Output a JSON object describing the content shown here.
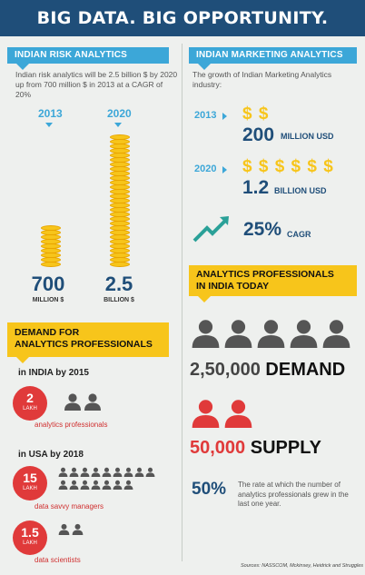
{
  "title": "BIG DATA. BIG OPPORTUNITY.",
  "risk": {
    "heading": "INDIAN RISK ANALYTICS",
    "desc": "Indian risk analytics will be 2.5 billion $ by 2020 up from 700 million $ in 2013 at a CAGR of 20%",
    "year_a": "2013",
    "year_b": "2020",
    "val_a": "700",
    "unit_a": "MILLION $",
    "val_b": "2.5",
    "unit_b": "BILLION $"
  },
  "marketing": {
    "heading": "INDIAN MARKETING ANALYTICS",
    "desc": "The growth of Indian Marketing Analytics industry:",
    "y1": "2013",
    "y1_dollars": "$ $",
    "y1_value": "200",
    "y1_unit": "MILLION USD",
    "y2": "2020",
    "y2_dollars": "$ $ $ $ $ $",
    "y2_value": "1.2",
    "y2_unit": "BILLION USD",
    "cagr_value": "25%",
    "cagr_label": "CAGR"
  },
  "demand": {
    "heading_l1": "DEMAND FOR",
    "heading_l2": "ANALYTICS PROFESSIONALS",
    "india_label": "in INDIA by 2015",
    "india_num": "2",
    "india_unit": "LAKH",
    "india_desc": "analytics professionals",
    "usa_label": "in USA by 2018",
    "usa1_num": "15",
    "usa1_unit": "LAKH",
    "usa1_desc": "data savvy managers",
    "usa2_num": "1.5",
    "usa2_unit": "LAKH",
    "usa2_desc": "data scientists"
  },
  "professionals": {
    "heading_l1": "ANALYTICS PROFESSIONALS",
    "heading_l2": "IN INDIA TODAY",
    "demand_num": "2,50,000",
    "demand_label": "DEMAND",
    "supply_num": "50,000",
    "supply_label": "SUPPLY",
    "growth_pct": "50%",
    "growth_desc": "The rate at which the number of analytics professionals grew in the last one year."
  },
  "source": "Sources: NASSCOM, Mckinsey, Heidrick and Struggles",
  "colors": {
    "navy": "#1f4e79",
    "cyan": "#3ca7d8",
    "yellow": "#f7c51b",
    "red": "#e03a3a",
    "grey_person": "#555555"
  }
}
